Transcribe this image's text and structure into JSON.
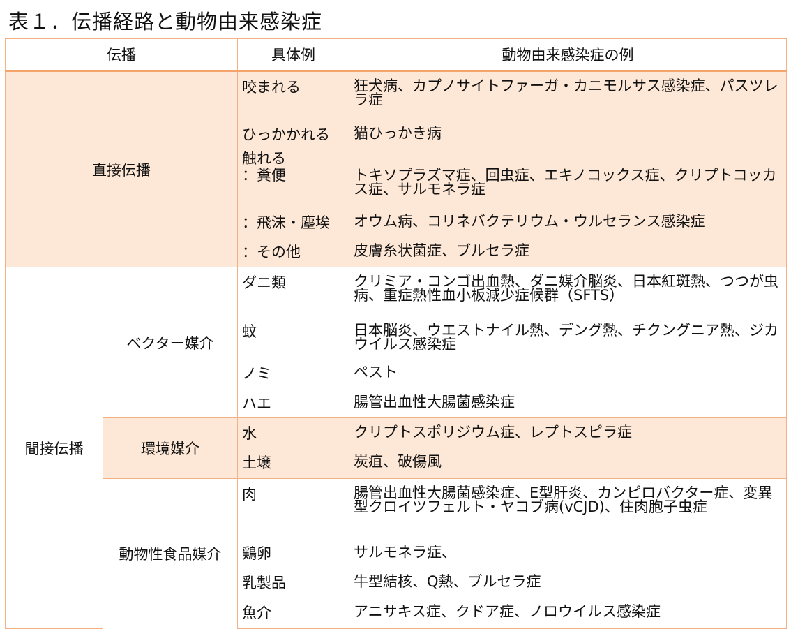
{
  "title": "表１．伝播経路と動物由来感染症",
  "headers": [
    "伝播",
    "具体例",
    "動物由来感染症の例"
  ],
  "direct": {
    "label": "直接伝播",
    "rows": [
      {
        "example": "咬まれる",
        "diseases": "狂犬病、カプノサイトファーガ・カニモルサス感染症、パスツレラ症"
      },
      {
        "example": "ひっかかれる",
        "diseases": "猫ひっかき病"
      },
      {
        "example": "触れる\n：糞便",
        "diseases": "トキソプラズマ症、回虫症、エキノコックス症、クリプトコッカス症、サルモネラ症"
      },
      {
        "example": "：飛沫・塵埃",
        "diseases": "オウム病、コリネバクテリウム・ウルセランス感染症"
      },
      {
        "example": "：その他",
        "diseases": "皮膚糸状菌症、ブルセラ症"
      }
    ]
  },
  "indirect": {
    "label": "間接伝播",
    "groups": [
      {
        "label": "ベクター媒介",
        "rows": [
          {
            "example": "ダニ類",
            "diseases": "クリミア・コンゴ出血熱、ダニ媒介脳炎、日本紅斑熱、つつが虫病、重症熱性血小板減少症候群（SFTS）"
          },
          {
            "example": "蚊",
            "diseases": "日本脳炎、ウエストナイル熱、デング熱、チクングニア熱、ジカウイルス感染症"
          },
          {
            "example": "ノミ",
            "diseases": "ペスト"
          },
          {
            "example": "ハエ",
            "diseases": "腸管出血性大腸菌感染症"
          }
        ]
      },
      {
        "label": "環境媒介",
        "rows": [
          {
            "example": "水",
            "diseases": "クリプトスポリジウム症、レプトスピラ症"
          },
          {
            "example": "土壌",
            "diseases": "炭疽、破傷風"
          }
        ]
      },
      {
        "label": "動物性食品媒介",
        "rows": [
          {
            "example": "肉",
            "diseases": "腸管出血性大腸菌感染症、E型肝炎、カンピロバクター症、変異型クロイツフェルト・ヤコブ病(vCJD)、住肉胞子虫症"
          },
          {
            "example": "鶏卵",
            "diseases": "サルモネラ症、"
          },
          {
            "example": "乳製品",
            "diseases": "牛型結核、Q熱、ブルセラ症"
          },
          {
            "example": "魚介",
            "diseases": "アニサキス症、クドア症、ノロウイルス感染症"
          }
        ]
      }
    ]
  }
}
